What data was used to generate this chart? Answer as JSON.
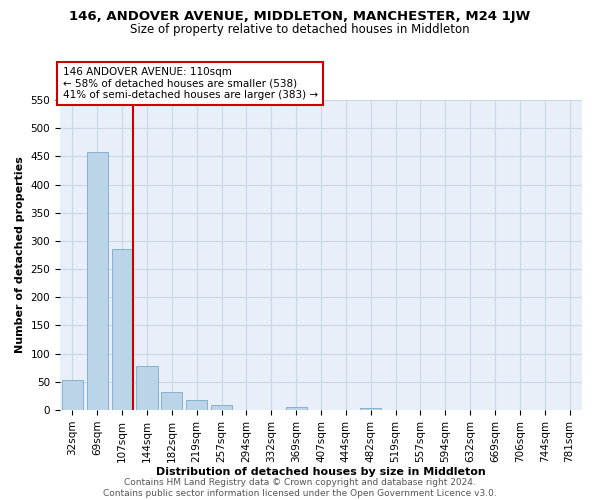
{
  "title": "146, ANDOVER AVENUE, MIDDLETON, MANCHESTER, M24 1JW",
  "subtitle": "Size of property relative to detached houses in Middleton",
  "xlabel": "Distribution of detached houses by size in Middleton",
  "ylabel": "Number of detached properties",
  "bar_labels": [
    "32sqm",
    "69sqm",
    "107sqm",
    "144sqm",
    "182sqm",
    "219sqm",
    "257sqm",
    "294sqm",
    "332sqm",
    "369sqm",
    "407sqm",
    "444sqm",
    "482sqm",
    "519sqm",
    "557sqm",
    "594sqm",
    "632sqm",
    "669sqm",
    "706sqm",
    "744sqm",
    "781sqm"
  ],
  "bar_values": [
    53,
    457,
    285,
    78,
    32,
    17,
    9,
    0,
    0,
    5,
    0,
    0,
    4,
    0,
    0,
    0,
    0,
    0,
    0,
    0,
    0
  ],
  "property_line_idx": 2,
  "property_sqm": 110,
  "annotation_line1": "146 ANDOVER AVENUE: 110sqm",
  "annotation_line2": "← 58% of detached houses are smaller (538)",
  "annotation_line3": "41% of semi-detached houses are larger (383) →",
  "bar_color": "#bcd4e8",
  "bar_edge_color": "#7aaac8",
  "vline_color": "#cc0000",
  "annotation_box_color": "#ffffff",
  "annotation_box_edge": "#cc0000",
  "ylim": [
    0,
    550
  ],
  "yticks": [
    0,
    50,
    100,
    150,
    200,
    250,
    300,
    350,
    400,
    450,
    500,
    550
  ],
  "plot_bg_color": "#e8eff8",
  "background_color": "#ffffff",
  "grid_color": "#c8d8e8",
  "footer_line1": "Contains HM Land Registry data © Crown copyright and database right 2024.",
  "footer_line2": "Contains public sector information licensed under the Open Government Licence v3.0.",
  "title_fontsize": 9.5,
  "subtitle_fontsize": 8.5,
  "axis_label_fontsize": 8.0,
  "tick_fontsize": 7.5,
  "annotation_fontsize": 7.5,
  "footer_fontsize": 6.5
}
